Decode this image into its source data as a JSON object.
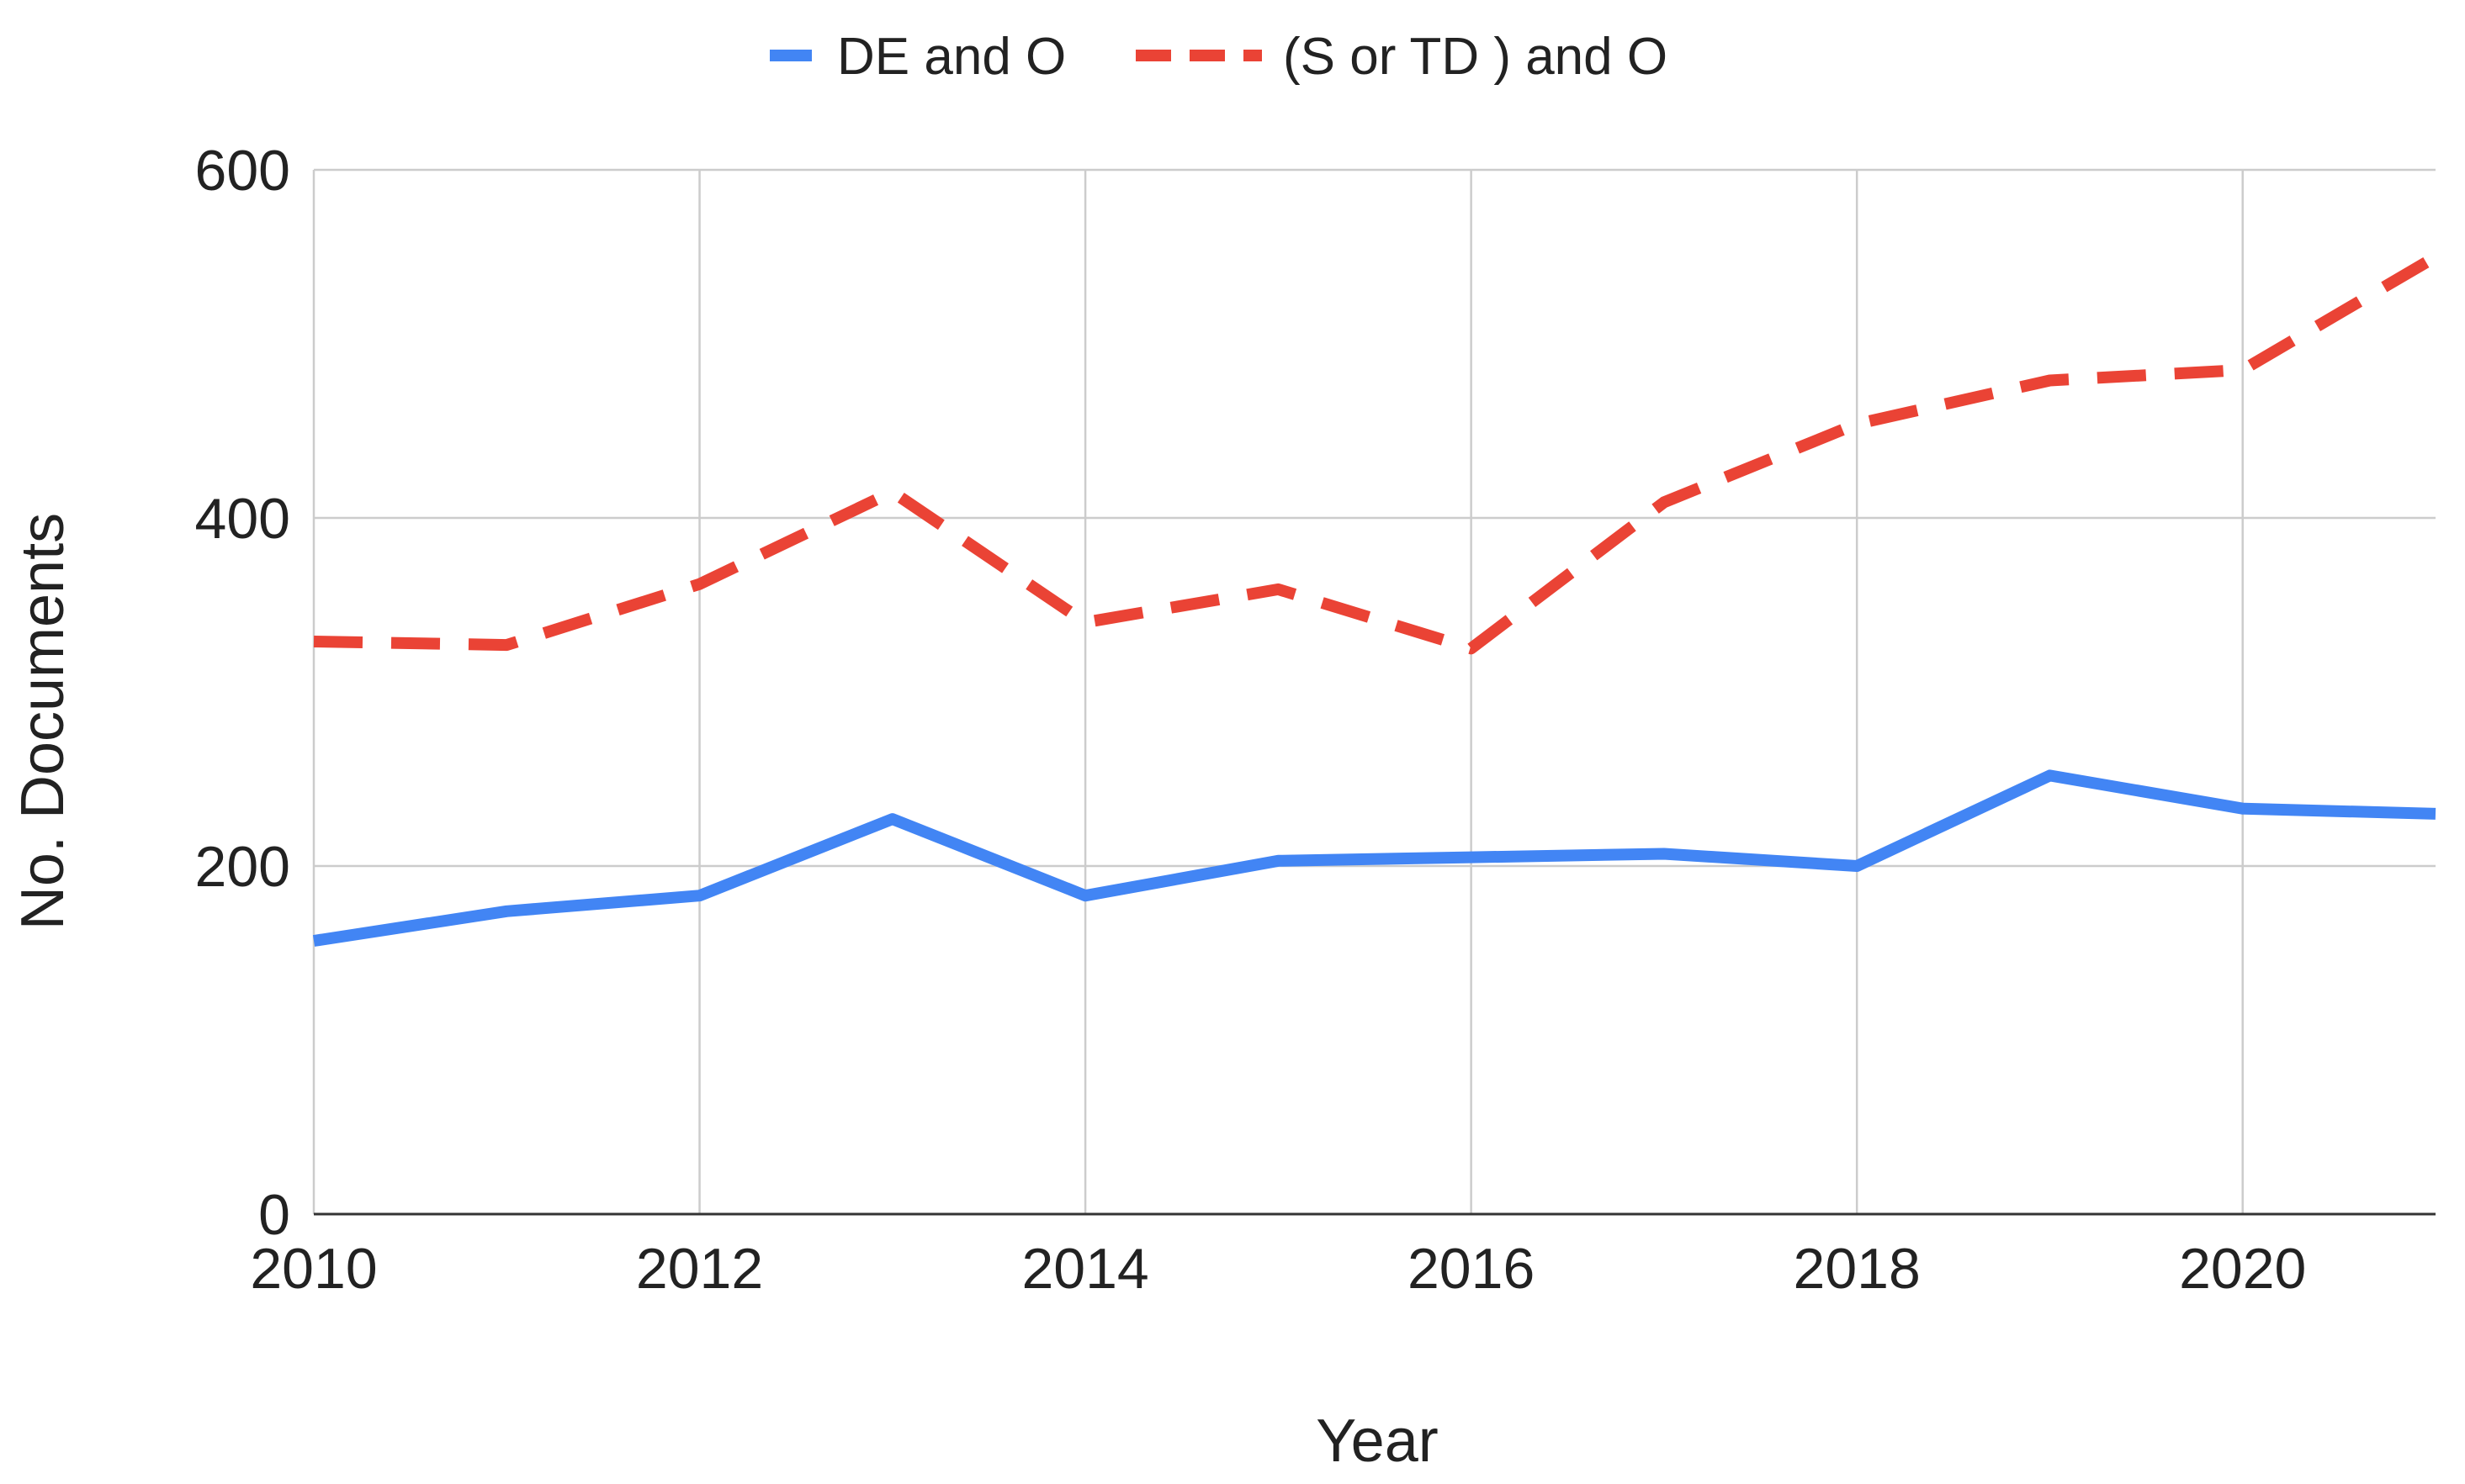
{
  "chart_data": {
    "type": "line",
    "title": "",
    "xlabel": "Year",
    "ylabel": "No. Documents",
    "x": [
      2010,
      2011,
      2012,
      2013,
      2014,
      2015,
      2016,
      2017,
      2018,
      2019,
      2020,
      2021
    ],
    "xlim": [
      2010,
      2021
    ],
    "ylim": [
      0,
      600
    ],
    "xticks": [
      "2010",
      "2012",
      "2014",
      "2016",
      "2018",
      "2020"
    ],
    "yticks": [
      "0",
      "200",
      "400",
      "600"
    ],
    "grid": true,
    "legend_position": "top-center",
    "series": [
      {
        "name": "DE and O",
        "color": "#4285f4",
        "style": "solid",
        "values": [
          157,
          174,
          183,
          227,
          183,
          203,
          205,
          207,
          200,
          252,
          233,
          230
        ]
      },
      {
        "name": "(S or TD ) and O",
        "color": "#ea4335",
        "style": "dashed",
        "values": [
          329,
          327,
          362,
          415,
          340,
          359,
          325,
          409,
          454,
          479,
          485,
          550
        ]
      }
    ]
  }
}
